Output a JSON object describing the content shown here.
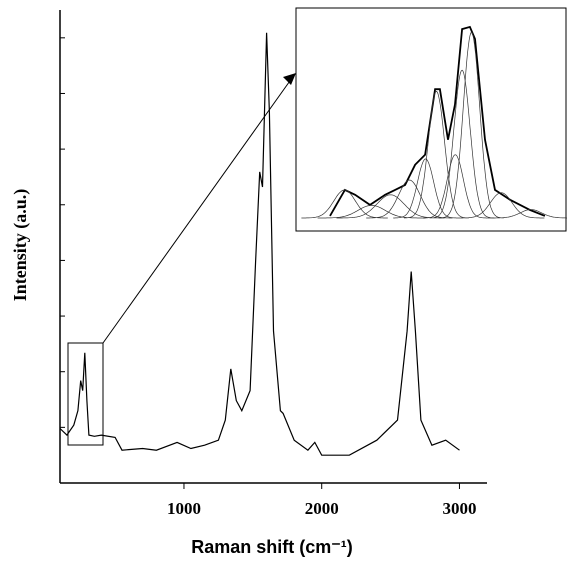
{
  "chart_data": [
    {
      "type": "line",
      "xlabel": "Raman shift (cm⁻¹)",
      "ylabel": "Intensity (a.u.)",
      "xlim": [
        100,
        3200
      ],
      "ylim": [
        0,
        85
      ],
      "xticks": [
        1000,
        2000,
        3000
      ],
      "yticks": [
        10,
        20,
        30,
        40,
        50,
        60,
        70,
        80
      ],
      "x": [
        100,
        150,
        200,
        230,
        250,
        265,
        280,
        295,
        310,
        350,
        400,
        500,
        550,
        700,
        800,
        950,
        1050,
        1150,
        1250,
        1300,
        1340,
        1380,
        1420,
        1480,
        1520,
        1550,
        1570,
        1600,
        1620,
        1650,
        1700,
        1720,
        1800,
        1900,
        1950,
        2000,
        2200,
        2400,
        2550,
        2620,
        2650,
        2680,
        2720,
        2800,
        2900,
        3000
      ],
      "series": [
        {
          "color": "#000000",
          "values": [
            9.8,
            8.6,
            10.4,
            13,
            18.4,
            16.6,
            23.4,
            14.8,
            8.6,
            8.4,
            8.6,
            8.2,
            5.9,
            6.2,
            5.9,
            7.3,
            6.2,
            6.8,
            7.7,
            11.3,
            20.5,
            14.8,
            13,
            16.6,
            39.8,
            55.9,
            53.2,
            80.9,
            66.6,
            27.3,
            13,
            12.5,
            7.7,
            5.9,
            7.3,
            5,
            5,
            7.7,
            11.3,
            27.3,
            38,
            27.3,
            11.3,
            6.8,
            7.7,
            5.9
          ]
        }
      ]
    },
    {
      "type": "line",
      "xlim": [
        0,
        100
      ],
      "ylim": [
        0,
        90
      ],
      "x": [
        12.6,
        18.1,
        21.9,
        27.4,
        33,
        36.7,
        40.4,
        44.1,
        47.8,
        51.5,
        53.3,
        56.3,
        58.9,
        61.5,
        64.4,
        66.3,
        70,
        73.7,
        79.3,
        86.7,
        92.2
      ],
      "series": [
        {
          "color": "#000000",
          "values": [
            1,
            13.3,
            11,
            6.2,
            11,
            13.3,
            15.7,
            25.2,
            30,
            61,
            61,
            37.1,
            53.8,
            89.5,
            90.5,
            84.8,
            37.1,
            13.3,
            8.6,
            3.8,
            1
          ]
        }
      ],
      "peaks": [
        {
          "center": 18,
          "height": 13.3,
          "width": 4
        },
        {
          "center": 28,
          "height": 6,
          "width": 5
        },
        {
          "center": 35,
          "height": 11,
          "width": 5
        },
        {
          "center": 42,
          "height": 18,
          "width": 4
        },
        {
          "center": 48,
          "height": 28,
          "width": 3
        },
        {
          "center": 52,
          "height": 60,
          "width": 3
        },
        {
          "center": 59,
          "height": 30,
          "width": 3
        },
        {
          "center": 61.5,
          "height": 70,
          "width": 3
        },
        {
          "center": 65,
          "height": 88,
          "width": 3
        },
        {
          "center": 76,
          "height": 12,
          "width": 4
        },
        {
          "center": 87,
          "height": 4,
          "width": 4
        }
      ]
    }
  ]
}
